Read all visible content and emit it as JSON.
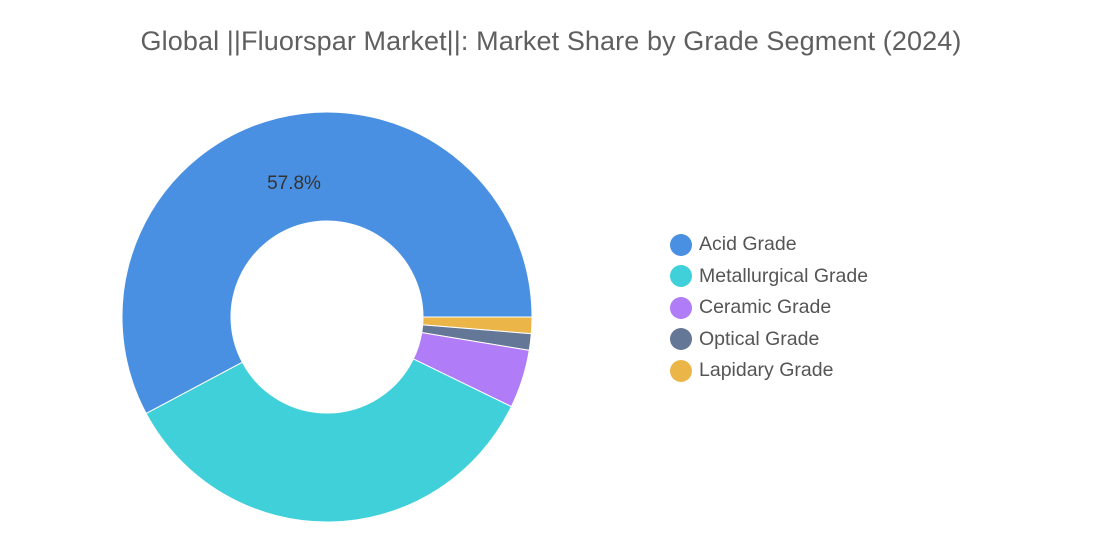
{
  "chart_data": {
    "type": "pie",
    "donut": true,
    "title": "Global ||Fluorspar Market||: Market Share by Grade Segment (2024)",
    "series": [
      {
        "name": "Acid Grade",
        "value": 57.8,
        "label": "57.8%",
        "color": "#4a90e2"
      },
      {
        "name": "Metallurgical Grade",
        "value": 35.0,
        "label": "",
        "color": "#40d0da"
      },
      {
        "name": "Ceramic Grade",
        "value": 4.6,
        "label": "",
        "color": "#b07cf7"
      },
      {
        "name": "Optical Grade",
        "value": 1.3,
        "label": "",
        "color": "#647796"
      },
      {
        "name": "Lapidary Grade",
        "value": 1.3,
        "label": "",
        "color": "#ebb548"
      }
    ],
    "legend_position": "right"
  }
}
